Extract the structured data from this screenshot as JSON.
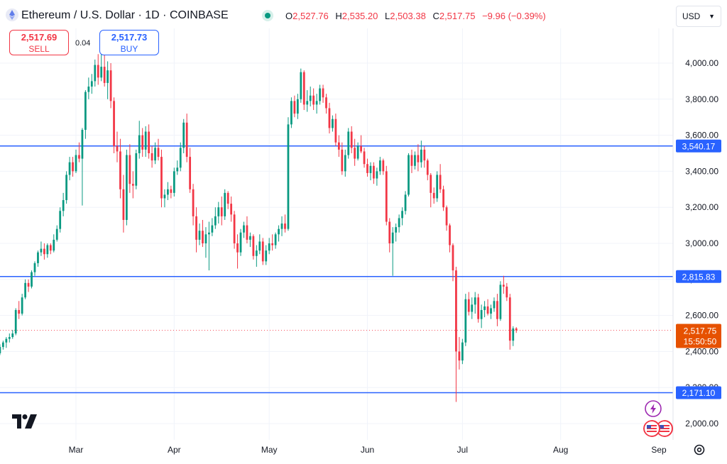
{
  "header": {
    "title": "Ethereum / U.S. Dollar · 1D · COINBASE",
    "ohlc": {
      "o_label": "O",
      "o_value": "2,527.76",
      "h_label": "H",
      "h_value": "2,535.20",
      "l_label": "L",
      "l_value": "2,503.38",
      "c_label": "C",
      "c_value": "2,517.75",
      "change": "−9.96 (−0.39%)"
    }
  },
  "trade": {
    "sell_price": "2,517.69",
    "sell_label": "SELL",
    "spread": "0.04",
    "buy_price": "2,517.73",
    "buy_label": "BUY"
  },
  "currency_select": {
    "value": "USD"
  },
  "colors": {
    "up": "#089981",
    "down": "#f23645",
    "hline": "#2962ff",
    "last": "#f7525f",
    "timer": "#e65100"
  },
  "chart_data": {
    "type": "candlestick",
    "title": "Ethereum / U.S. Dollar · 1D · COINBASE",
    "ylim": [
      1900,
      4150
    ],
    "y_ticks": [
      2000,
      2200,
      2400,
      2600,
      2800,
      3000,
      3200,
      3400,
      3600,
      3800,
      4000
    ],
    "y_tick_labels": [
      "2,000.00",
      "2,200.00",
      "2,400.00",
      "2,600.00",
      "2,800.00",
      "3,000.00",
      "3,200.00",
      "3,400.00",
      "3,600.00",
      "3,800.00",
      "4,000.00"
    ],
    "x_tick_labels": [
      "Mar",
      "Apr",
      "May",
      "Jun",
      "Jul",
      "Aug",
      "Sep"
    ],
    "x_tick_dates": [
      "2024-03-01",
      "2024-04-01",
      "2024-05-01",
      "2024-06-01",
      "2024-07-01",
      "2024-08-01",
      "2024-09-01"
    ],
    "hlines": [
      {
        "value": 3540.17,
        "label": "3,540.17"
      },
      {
        "value": 2815.83,
        "label": "2,815.83"
      },
      {
        "value": 2171.1,
        "label": "2,171.10"
      }
    ],
    "last_price": {
      "value": 2517.75,
      "label": "2,517.75",
      "timer": "15:50:50"
    },
    "grid": true,
    "first_date": "2024-02-05",
    "candles": [
      [
        2380,
        2400,
        2350,
        2390
      ],
      [
        2390,
        2440,
        2380,
        2425
      ],
      [
        2425,
        2460,
        2410,
        2450
      ],
      [
        2450,
        2480,
        2420,
        2470
      ],
      [
        2470,
        2500,
        2450,
        2480
      ],
      [
        2480,
        2520,
        2470,
        2500
      ],
      [
        2500,
        2640,
        2490,
        2630
      ],
      [
        2630,
        2680,
        2580,
        2610
      ],
      [
        2610,
        2720,
        2600,
        2700
      ],
      [
        2700,
        2800,
        2690,
        2780
      ],
      [
        2780,
        2800,
        2730,
        2760
      ],
      [
        2760,
        2850,
        2750,
        2840
      ],
      [
        2840,
        2900,
        2820,
        2890
      ],
      [
        2890,
        2960,
        2870,
        2950
      ],
      [
        2950,
        3010,
        2930,
        2970
      ],
      [
        2970,
        3000,
        2910,
        2940
      ],
      [
        2940,
        3000,
        2920,
        2990
      ],
      [
        2990,
        3000,
        2940,
        2960
      ],
      [
        2960,
        3050,
        2950,
        3020
      ],
      [
        3020,
        3100,
        3010,
        3080
      ],
      [
        3080,
        3200,
        3060,
        3180
      ],
      [
        3180,
        3280,
        3150,
        3240
      ],
      [
        3240,
        3400,
        3220,
        3380
      ],
      [
        3380,
        3480,
        3350,
        3450
      ],
      [
        3450,
        3480,
        3370,
        3400
      ],
      [
        3400,
        3520,
        3390,
        3490
      ],
      [
        3490,
        3560,
        3450,
        3470
      ],
      [
        3470,
        3640,
        3210,
        3630
      ],
      [
        3630,
        3850,
        3580,
        3840
      ],
      [
        3840,
        3920,
        3800,
        3870
      ],
      [
        3870,
        3940,
        3830,
        3900
      ],
      [
        3900,
        4020,
        3870,
        3990
      ],
      [
        3990,
        4050,
        3880,
        3920
      ],
      [
        3920,
        4090,
        3900,
        3980
      ],
      [
        3980,
        4060,
        3870,
        3890
      ],
      [
        3890,
        4010,
        3800,
        3960
      ],
      [
        3960,
        4000,
        3750,
        3790
      ],
      [
        3790,
        3810,
        3500,
        3540
      ],
      [
        3540,
        3620,
        3450,
        3510
      ],
      [
        3510,
        3580,
        3250,
        3300
      ],
      [
        3300,
        3380,
        3060,
        3130
      ],
      [
        3130,
        3520,
        3100,
        3490
      ],
      [
        3490,
        3550,
        3280,
        3330
      ],
      [
        3330,
        3400,
        3250,
        3320
      ],
      [
        3320,
        3520,
        3300,
        3500
      ],
      [
        3500,
        3680,
        3470,
        3600
      ],
      [
        3600,
        3640,
        3480,
        3520
      ],
      [
        3520,
        3650,
        3480,
        3620
      ],
      [
        3620,
        3660,
        3470,
        3500
      ],
      [
        3500,
        3540,
        3420,
        3460
      ],
      [
        3460,
        3560,
        3440,
        3530
      ],
      [
        3530,
        3580,
        3460,
        3480
      ],
      [
        3480,
        3520,
        3200,
        3250
      ],
      [
        3250,
        3300,
        3200,
        3270
      ],
      [
        3270,
        3340,
        3240,
        3300
      ],
      [
        3300,
        3320,
        3250,
        3280
      ],
      [
        3280,
        3420,
        3260,
        3400
      ],
      [
        3400,
        3460,
        3380,
        3420
      ],
      [
        3420,
        3560,
        3400,
        3530
      ],
      [
        3530,
        3690,
        3500,
        3670
      ],
      [
        3670,
        3720,
        3450,
        3480
      ],
      [
        3480,
        3530,
        3280,
        3300
      ],
      [
        3300,
        3330,
        3100,
        3150
      ],
      [
        3150,
        3200,
        2950,
        3020
      ],
      [
        3020,
        3110,
        2990,
        3070
      ],
      [
        3070,
        3130,
        2980,
        3000
      ],
      [
        3000,
        3090,
        2920,
        3050
      ],
      [
        3050,
        3120,
        2850,
        3060
      ],
      [
        3060,
        3140,
        3040,
        3100
      ],
      [
        3100,
        3200,
        3080,
        3150
      ],
      [
        3150,
        3230,
        3110,
        3200
      ],
      [
        3200,
        3260,
        3100,
        3150
      ],
      [
        3150,
        3300,
        3130,
        3280
      ],
      [
        3280,
        3290,
        3190,
        3220
      ],
      [
        3220,
        3260,
        3120,
        3160
      ],
      [
        3160,
        3180,
        2970,
        3000
      ],
      [
        3000,
        3050,
        2860,
        2950
      ],
      [
        2950,
        3080,
        2930,
        3060
      ],
      [
        3060,
        3120,
        3030,
        3100
      ],
      [
        3100,
        3150,
        3000,
        3020
      ],
      [
        3020,
        3060,
        2980,
        3040
      ],
      [
        3040,
        3050,
        2910,
        2930
      ],
      [
        2930,
        2990,
        2870,
        2960
      ],
      [
        2960,
        3050,
        2940,
        3010
      ],
      [
        3010,
        3030,
        2880,
        2900
      ],
      [
        2900,
        2990,
        2880,
        2960
      ],
      [
        2960,
        3030,
        2940,
        3000
      ],
      [
        3000,
        3050,
        2960,
        2990
      ],
      [
        2990,
        3060,
        2970,
        3050
      ],
      [
        3050,
        3100,
        3010,
        3080
      ],
      [
        3080,
        3150,
        3040,
        3110
      ],
      [
        3110,
        3160,
        3060,
        3080
      ],
      [
        3080,
        3700,
        3070,
        3660
      ],
      [
        3660,
        3810,
        3640,
        3790
      ],
      [
        3790,
        3820,
        3700,
        3720
      ],
      [
        3720,
        3830,
        3690,
        3800
      ],
      [
        3800,
        3970,
        3780,
        3950
      ],
      [
        3950,
        3960,
        3740,
        3770
      ],
      [
        3770,
        3850,
        3730,
        3790
      ],
      [
        3790,
        3870,
        3760,
        3820
      ],
      [
        3820,
        3860,
        3740,
        3770
      ],
      [
        3770,
        3830,
        3720,
        3790
      ],
      [
        3790,
        3880,
        3770,
        3860
      ],
      [
        3860,
        3880,
        3780,
        3810
      ],
      [
        3810,
        3830,
        3720,
        3750
      ],
      [
        3750,
        3780,
        3610,
        3640
      ],
      [
        3640,
        3710,
        3620,
        3690
      ],
      [
        3690,
        3720,
        3540,
        3560
      ],
      [
        3560,
        3600,
        3480,
        3520
      ],
      [
        3520,
        3560,
        3380,
        3400
      ],
      [
        3400,
        3520,
        3370,
        3490
      ],
      [
        3490,
        3640,
        3470,
        3620
      ],
      [
        3620,
        3650,
        3500,
        3530
      ],
      [
        3530,
        3580,
        3430,
        3470
      ],
      [
        3470,
        3560,
        3460,
        3540
      ],
      [
        3540,
        3600,
        3500,
        3510
      ],
      [
        3510,
        3530,
        3420,
        3440
      ],
      [
        3440,
        3470,
        3370,
        3390
      ],
      [
        3390,
        3450,
        3350,
        3430
      ],
      [
        3430,
        3450,
        3330,
        3360
      ],
      [
        3360,
        3420,
        3320,
        3400
      ],
      [
        3400,
        3480,
        3380,
        3460
      ],
      [
        3460,
        3470,
        3380,
        3400
      ],
      [
        3400,
        3430,
        3100,
        3120
      ],
      [
        3120,
        3140,
        2950,
        3000
      ],
      [
        3000,
        3090,
        2820,
        3060
      ],
      [
        3060,
        3110,
        3010,
        3090
      ],
      [
        3090,
        3160,
        3060,
        3140
      ],
      [
        3140,
        3200,
        3100,
        3180
      ],
      [
        3180,
        3290,
        3160,
        3270
      ],
      [
        3270,
        3500,
        3260,
        3490
      ],
      [
        3490,
        3520,
        3390,
        3430
      ],
      [
        3430,
        3510,
        3410,
        3490
      ],
      [
        3490,
        3550,
        3400,
        3450
      ],
      [
        3450,
        3570,
        3420,
        3520
      ],
      [
        3520,
        3540,
        3420,
        3460
      ],
      [
        3460,
        3470,
        3350,
        3380
      ],
      [
        3380,
        3390,
        3200,
        3280
      ],
      [
        3280,
        3310,
        3220,
        3250
      ],
      [
        3250,
        3400,
        3230,
        3380
      ],
      [
        3380,
        3440,
        3280,
        3300
      ],
      [
        3300,
        3320,
        3180,
        3200
      ],
      [
        3200,
        3210,
        3070,
        3100
      ],
      [
        3100,
        3110,
        2950,
        2990
      ],
      [
        2990,
        3000,
        2790,
        2850
      ],
      [
        2850,
        2870,
        2120,
        2400
      ],
      [
        2400,
        2480,
        2300,
        2350
      ],
      [
        2350,
        2470,
        2330,
        2450
      ],
      [
        2450,
        2720,
        2430,
        2690
      ],
      [
        2690,
        2730,
        2600,
        2620
      ],
      [
        2620,
        2700,
        2580,
        2660
      ],
      [
        2660,
        2730,
        2610,
        2700
      ],
      [
        2700,
        2720,
        2560,
        2580
      ],
      [
        2580,
        2660,
        2530,
        2630
      ],
      [
        2630,
        2680,
        2590,
        2650
      ],
      [
        2650,
        2690,
        2600,
        2610
      ],
      [
        2610,
        2660,
        2580,
        2640
      ],
      [
        2640,
        2700,
        2620,
        2680
      ],
      [
        2680,
        2720,
        2540,
        2580
      ],
      [
        2580,
        2790,
        2570,
        2770
      ],
      [
        2770,
        2820,
        2720,
        2760
      ],
      [
        2760,
        2780,
        2680,
        2700
      ],
      [
        2700,
        2720,
        2410,
        2460
      ],
      [
        2460,
        2540,
        2430,
        2528
      ],
      [
        2528,
        2535,
        2503,
        2517
      ]
    ]
  },
  "icons": {
    "alert": "lightning-icon",
    "events": "us-flag-icon",
    "settings": "gear-icon",
    "logo": "ethereum-icon"
  }
}
